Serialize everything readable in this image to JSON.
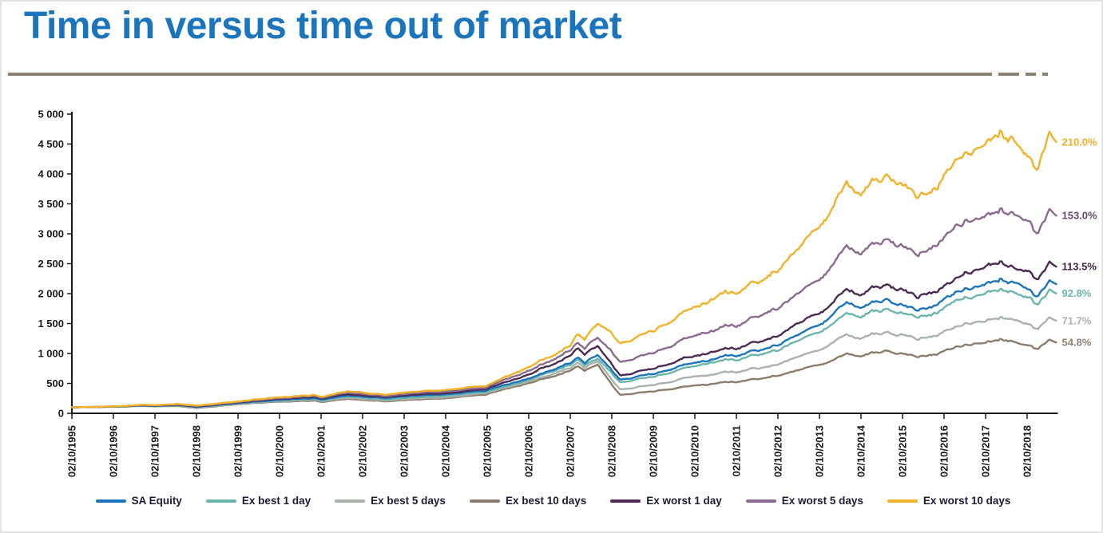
{
  "page": {
    "title": "Time in versus time out of market",
    "title_color": "#1B75BC",
    "rule_color": "#8B8274",
    "background": "#FFFFFF"
  },
  "chart_data": {
    "type": "line",
    "title": "Time in versus time out of market",
    "xlabel": "",
    "ylabel": "",
    "grid": false,
    "legend_position": "bottom",
    "y_axis": {
      "min": 0,
      "max": 5000,
      "tick_values": [
        0,
        500,
        1000,
        1500,
        2000,
        2500,
        3000,
        3500,
        4000,
        4500,
        5000
      ],
      "tick_labels": [
        "0",
        "500",
        "1 000",
        "1 500",
        "2 000",
        "2 500",
        "3 000",
        "3 500",
        "4 000",
        "4 500",
        "5 000"
      ]
    },
    "x_axis": {
      "tick_labels": [
        "02/10/1995",
        "02/10/1996",
        "02/10/1997",
        "02/10/1998",
        "02/10/1999",
        "02/10/2000",
        "02/10/2001",
        "02/10/2002",
        "02/10/2003",
        "02/10/2004",
        "02/10/2005",
        "02/10/2006",
        "02/10/2007",
        "02/10/2008",
        "02/10/2009",
        "02/10/2010",
        "02/10/2011",
        "02/10/2012",
        "02/10/2013",
        "02/10/2014",
        "02/10/2015",
        "02/10/2016",
        "02/10/2017",
        "02/10/2018"
      ],
      "tick_years": [
        1995.75,
        1996.75,
        1997.75,
        1998.75,
        1999.75,
        2000.75,
        2001.75,
        2002.75,
        2003.75,
        2004.75,
        2005.75,
        2006.75,
        2007.75,
        2008.75,
        2009.75,
        2010.75,
        2011.75,
        2012.75,
        2013.75,
        2014.75,
        2015.75,
        2016.75,
        2017.75,
        2018.75
      ]
    },
    "x_values": [
      1995.75,
      1996.75,
      1997.5,
      1997.75,
      1998.3,
      1998.75,
      1999.75,
      2000.75,
      2001.6,
      2001.75,
      2002.4,
      2002.75,
      2003.3,
      2003.75,
      2004.75,
      2005.75,
      2006.75,
      2007.75,
      2007.95,
      2008.1,
      2008.4,
      2008.75,
      2008.95,
      2009.3,
      2009.75,
      2010.75,
      2011.5,
      2011.75,
      2012.75,
      2013.75,
      2014.4,
      2014.75,
      2015.4,
      2015.75,
      2016.1,
      2016.75,
      2017.75,
      2018.1,
      2018.75,
      2019.0,
      2019.3,
      2019.45
    ],
    "series": [
      {
        "name": "SA Equity",
        "color": "#1C75BC",
        "end_label": "",
        "end_label_color": "",
        "values": [
          100,
          111,
          134,
          124,
          141,
          106,
          178,
          230,
          258,
          224,
          301,
          279,
          250,
          278,
          318,
          400,
          613,
          853,
          940,
          840,
          973,
          720,
          565,
          600,
          660,
          880,
          955,
          940,
          1110,
          1400,
          1760,
          1700,
          1860,
          1800,
          1700,
          1880,
          2210,
          2260,
          2080,
          1940,
          2230,
          2160
        ]
      },
      {
        "name": "Ex best 1 day",
        "color": "#6BB5AC",
        "end_label": "92.8%",
        "end_label_color": "#6BB5AC",
        "values": [
          100,
          110,
          131,
          121,
          136,
          100,
          170,
          218,
          243,
          210,
          281,
          260,
          232,
          258,
          295,
          376,
          587,
          820,
          900,
          800,
          920,
          673,
          524,
          557,
          612,
          817,
          886,
          872,
          1030,
          1299,
          1633,
          1578,
          1726,
          1670,
          1578,
          1745,
          2051,
          2097,
          1930,
          1800,
          2069,
          2004
        ]
      },
      {
        "name": "Ex best 5 days",
        "color": "#A9B3AC",
        "end_label": "71.7%",
        "end_label_color": "#A9B3AC",
        "values": [
          100,
          109,
          128,
          118,
          131,
          94,
          162,
          207,
          229,
          197,
          262,
          242,
          215,
          239,
          274,
          354,
          560,
          770,
          850,
          755,
          880,
          569,
          405,
          430,
          473,
          631,
          685,
          674,
          796,
          1004,
          1262,
          1219,
          1334,
          1291,
          1219,
          1348,
          1585,
          1620,
          1491,
          1391,
          1599,
          1549
        ]
      },
      {
        "name": "Ex best 10 days",
        "color": "#8C7C6C",
        "end_label": "54.8%",
        "end_label_color": "#8F8374",
        "values": [
          100,
          108,
          125,
          115,
          126,
          88,
          155,
          196,
          215,
          185,
          244,
          225,
          200,
          222,
          255,
          333,
          533,
          720,
          790,
          700,
          813,
          475,
          310,
          329,
          362,
          482,
          523,
          515,
          608,
          767,
          964,
          932,
          1019,
          986,
          932,
          1030,
          1211,
          1238,
          1140,
          1063,
          1222,
          1184
        ]
      },
      {
        "name": "Ex worst 1 day",
        "color": "#4C2A52",
        "end_label": "113.5%",
        "end_label_color": "#3F2547",
        "values": [
          100,
          112,
          138,
          128,
          147,
          113,
          187,
          243,
          275,
          239,
          323,
          300,
          269,
          300,
          342,
          425,
          680,
          980,
          1080,
          960,
          1120,
          821,
          641,
          681,
          749,
          999,
          1084,
          1067,
          1260,
          1589,
          1998,
          1930,
          2111,
          2043,
          1930,
          2134,
          2508,
          2565,
          2361,
          2202,
          2531,
          2452
        ]
      },
      {
        "name": "Ex worst 5 days",
        "color": "#8A6A8E",
        "end_label": "153.0%",
        "end_label_color": "#66486B",
        "values": [
          100,
          113,
          141,
          132,
          152,
          120,
          196,
          256,
          292,
          255,
          346,
          322,
          290,
          323,
          368,
          452,
          747,
          1060,
          1180,
          1060,
          1253,
          1030,
          864,
          918,
          1010,
          1346,
          1461,
          1438,
          1698,
          2142,
          2693,
          2601,
          2846,
          2754,
          2601,
          2876,
          3381,
          3458,
          3182,
          2968,
          3412,
          3305
        ]
      },
      {
        "name": "Ex worst 10 days",
        "color": "#F0B229",
        "end_label": "210.0%",
        "end_label_color": "#EFAF24",
        "values": [
          100,
          114,
          145,
          136,
          158,
          128,
          205,
          270,
          310,
          272,
          370,
          345,
          312,
          348,
          395,
          480,
          813,
          1147,
          1330,
          1210,
          1500,
          1354,
          1187,
          1260,
          1386,
          1848,
          2006,
          1974,
          2331,
          2940,
          3696,
          3570,
          3906,
          3780,
          3570,
          3948,
          4641,
          4746,
          4368,
          4074,
          4683,
          4536
        ]
      }
    ]
  }
}
